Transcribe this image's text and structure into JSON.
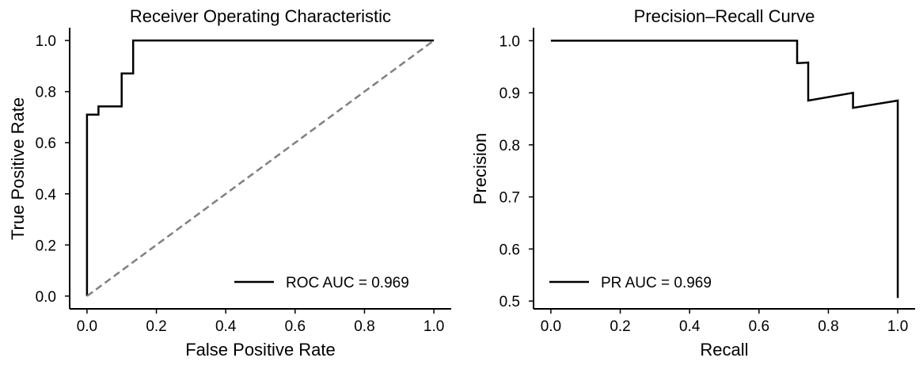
{
  "chart_data": [
    {
      "type": "line",
      "title": "Receiver Operating Characteristic",
      "xlabel": "False Positive Rate",
      "ylabel": "True Positive Rate",
      "xlim": [
        -0.05,
        1.05
      ],
      "ylim": [
        -0.05,
        1.05
      ],
      "xticks": [
        "0.0",
        "0.2",
        "0.4",
        "0.6",
        "0.8",
        "1.0"
      ],
      "yticks": [
        "0.0",
        "0.2",
        "0.4",
        "0.6",
        "0.8",
        "1.0"
      ],
      "grid": false,
      "legend_position": "bottom-right",
      "series": [
        {
          "name": "ROC AUC = 0.969",
          "color": "#000000",
          "style": "solid",
          "x": [
            0.0,
            0.0,
            0.033,
            0.033,
            0.1,
            0.1,
            0.133,
            0.133,
            1.0
          ],
          "y": [
            0.0,
            0.71,
            0.71,
            0.742,
            0.742,
            0.871,
            0.871,
            1.0,
            1.0
          ]
        },
        {
          "color": "#808080",
          "style": "dashed",
          "x": [
            0.0,
            1.0
          ],
          "y": [
            0.0,
            1.0
          ]
        }
      ]
    },
    {
      "type": "line",
      "title": "Precision–Recall Curve",
      "xlabel": "Recall",
      "ylabel": "Precision",
      "xlim": [
        -0.05,
        1.05
      ],
      "ylim": [
        0.485,
        1.025
      ],
      "xticks": [
        "0.0",
        "0.2",
        "0.4",
        "0.6",
        "0.8",
        "1.0"
      ],
      "yticks": [
        "0.5",
        "0.6",
        "0.7",
        "0.8",
        "0.9",
        "1.0"
      ],
      "grid": false,
      "legend_position": "bottom-left",
      "series": [
        {
          "name": "PR AUC = 0.969",
          "color": "#000000",
          "style": "solid",
          "x": [
            0.0,
            0.71,
            0.71,
            0.742,
            0.742,
            0.871,
            0.871,
            1.0,
            1.0
          ],
          "y": [
            1.0,
            1.0,
            0.957,
            0.958,
            0.885,
            0.9,
            0.871,
            0.885,
            0.506
          ]
        }
      ]
    }
  ]
}
